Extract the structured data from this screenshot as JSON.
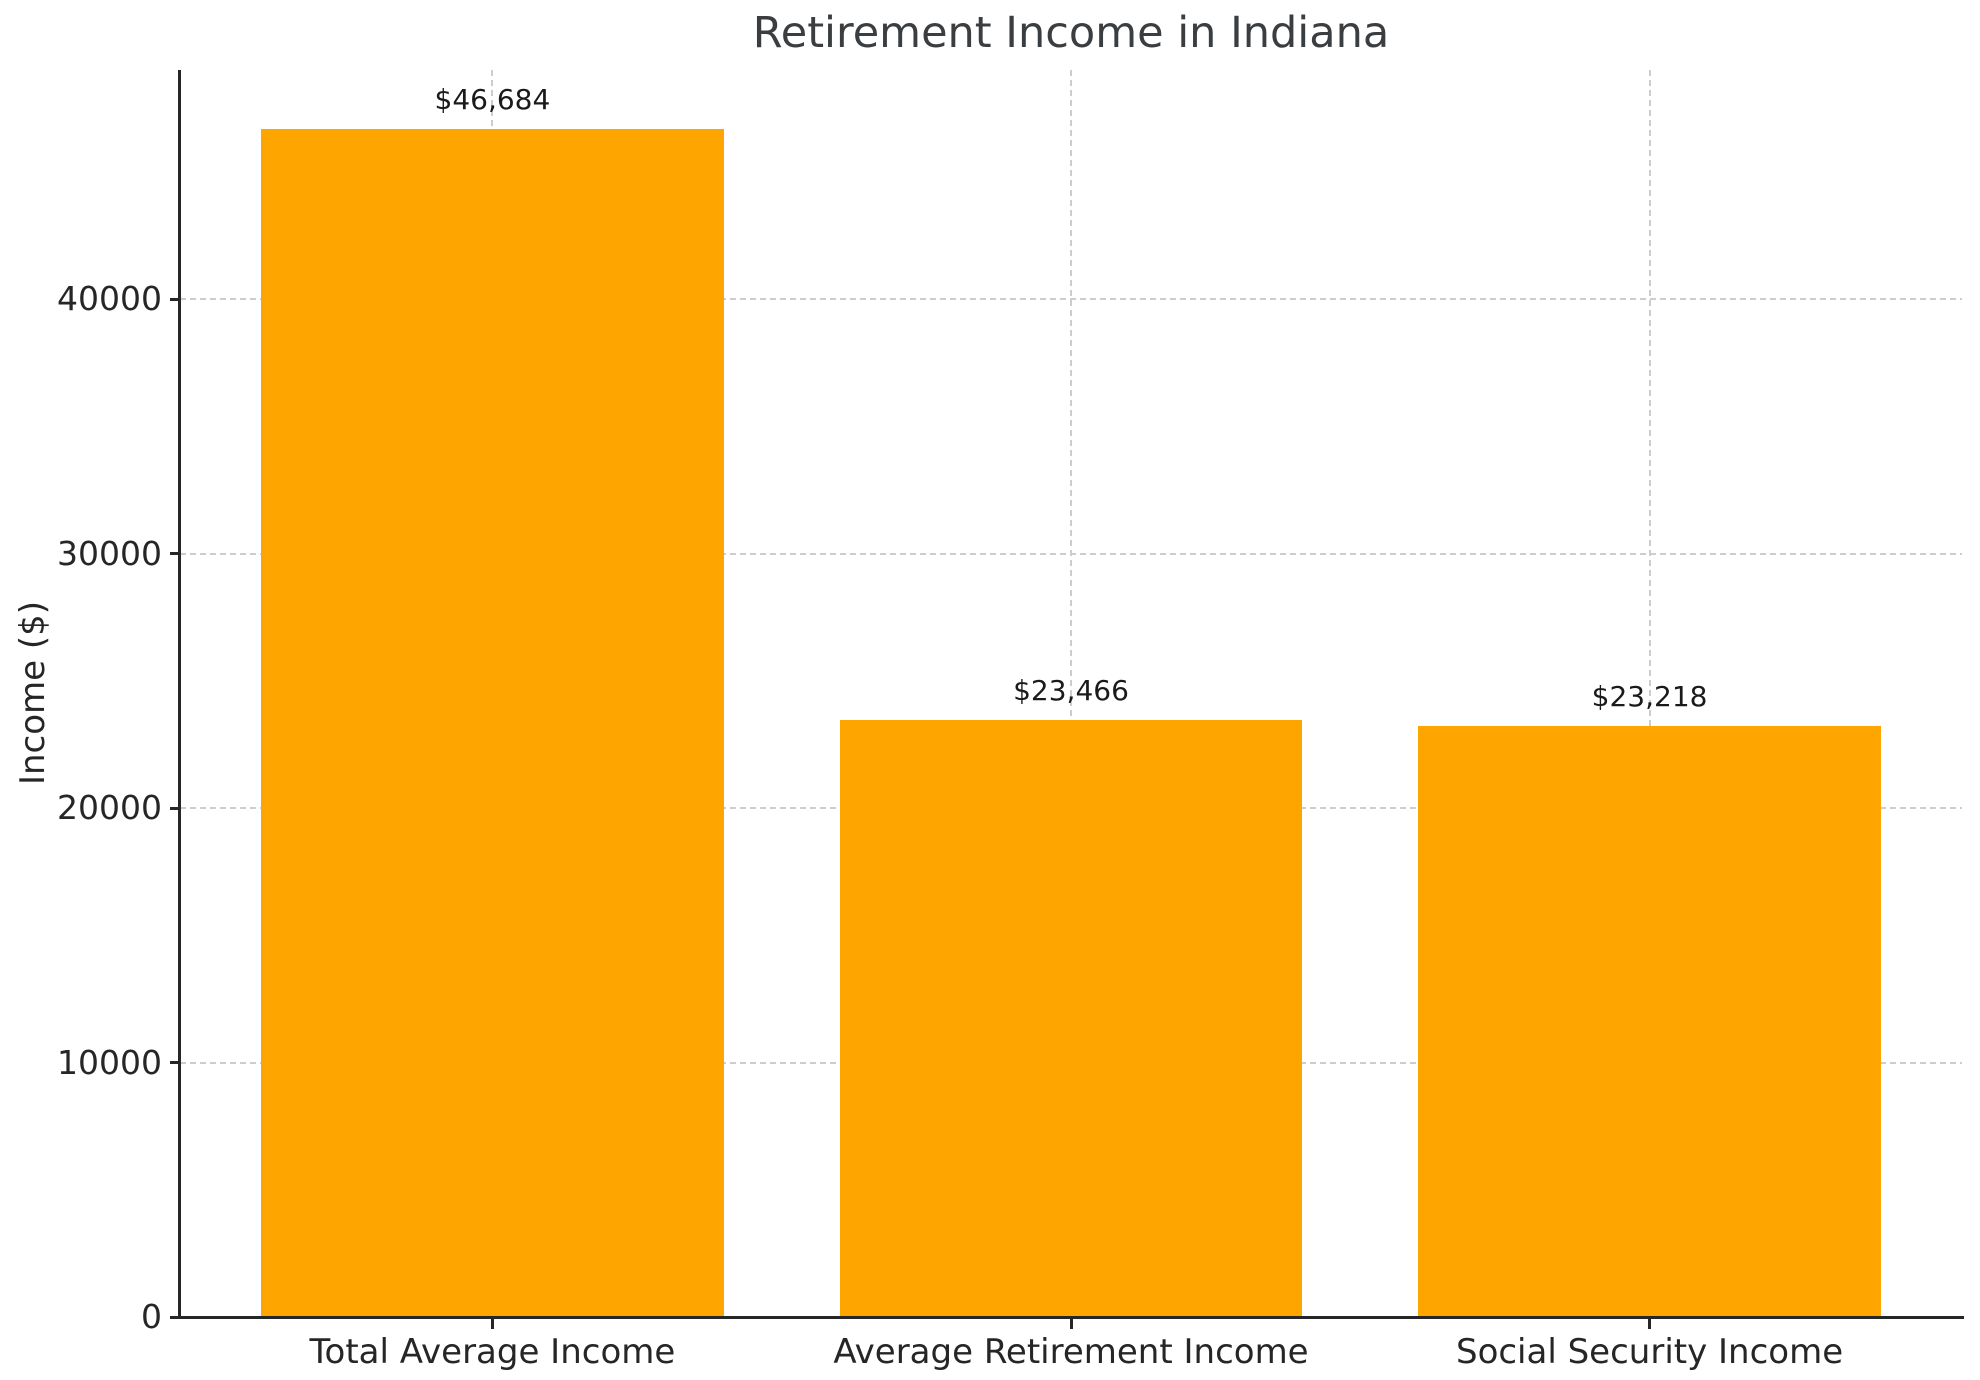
{
  "chart_data": {
    "type": "bar",
    "title": "Retirement Income in Indiana",
    "xlabel": "",
    "ylabel": "Income ($)",
    "categories": [
      "Total Average Income",
      "Average Retirement Income",
      "Social Security Income"
    ],
    "values": [
      46684,
      23466,
      23218
    ],
    "value_labels": [
      "$46,684",
      "$23,466",
      "$23,218"
    ],
    "yticks": [
      0,
      10000,
      20000,
      30000,
      40000
    ],
    "ytick_labels": [
      "0",
      "10000",
      "20000",
      "30000",
      "40000"
    ],
    "ylim": [
      0,
      49018
    ],
    "grid": true,
    "legend": "none",
    "bar_color": "#FFA500",
    "grid_color": "#CDCDCD",
    "axis_color": "#262626",
    "tick_text_color": "#262626",
    "value_label_color": "#1A1A1A",
    "title_color": "#3A3E41",
    "background_color": "#FFFFFF"
  }
}
